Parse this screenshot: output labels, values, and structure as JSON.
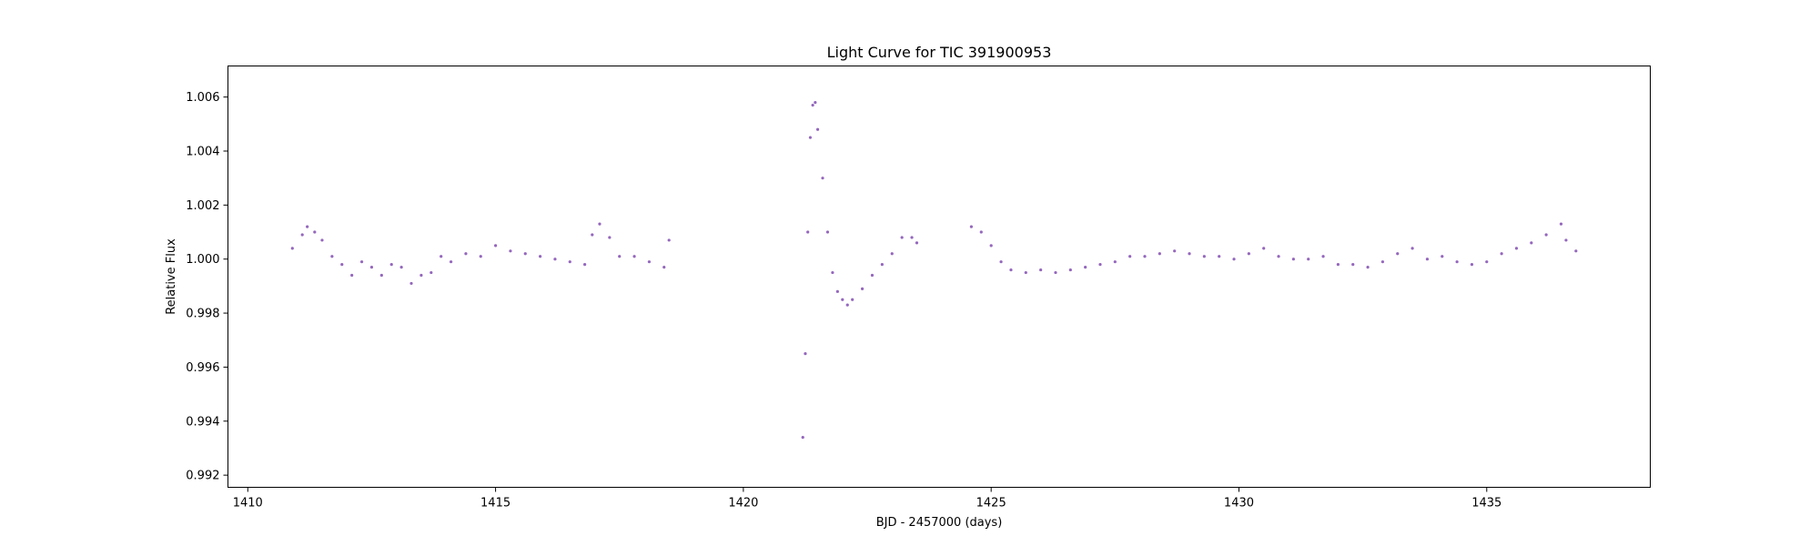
{
  "chart_data": {
    "type": "scatter",
    "title": "Light Curve for TIC 391900953",
    "xlabel": "BJD - 2457000 (days)",
    "ylabel": "Relative Flux",
    "xlim": [
      1409.6,
      1438.3
    ],
    "ylim": [
      0.99155,
      1.00715
    ],
    "xticks": [
      1410,
      1415,
      1420,
      1425,
      1430,
      1435
    ],
    "yticks": [
      0.992,
      0.994,
      0.996,
      0.998,
      1.0,
      1.002,
      1.004,
      1.006
    ],
    "ytick_labels": [
      "0.992",
      "0.994",
      "0.996",
      "0.998",
      "1.000",
      "1.002",
      "1.004",
      "1.006"
    ],
    "grid": false,
    "marker_color": "#9467bd",
    "series": [
      {
        "x": [
          1410.9,
          1411.1,
          1411.2,
          1411.35,
          1411.5,
          1411.7,
          1411.9,
          1412.1,
          1412.3,
          1412.5,
          1412.7,
          1412.9,
          1413.1,
          1413.3,
          1413.5,
          1413.7,
          1413.9,
          1414.1,
          1414.4,
          1414.7,
          1415.0,
          1415.3,
          1415.6,
          1415.9,
          1416.2,
          1416.5,
          1416.8,
          1416.95,
          1417.1,
          1417.3,
          1417.5,
          1417.8,
          1418.1,
          1418.4,
          1418.5,
          1421.2,
          1421.25,
          1421.3,
          1421.35,
          1421.4,
          1421.45,
          1421.5,
          1421.6,
          1421.7,
          1421.8,
          1421.9,
          1422.0,
          1422.1,
          1422.2,
          1422.4,
          1422.6,
          1422.8,
          1423.0,
          1423.2,
          1423.4,
          1423.5,
          1424.6,
          1424.8,
          1425.0,
          1425.2,
          1425.4,
          1425.7,
          1426.0,
          1426.3,
          1426.6,
          1426.9,
          1427.2,
          1427.5,
          1427.8,
          1428.1,
          1428.4,
          1428.7,
          1429.0,
          1429.3,
          1429.6,
          1429.9,
          1430.2,
          1430.5,
          1430.8,
          1431.1,
          1431.4,
          1431.7,
          1432.0,
          1432.3,
          1432.6,
          1432.9,
          1433.2,
          1433.5,
          1433.8,
          1434.1,
          1434.4,
          1434.7,
          1435.0,
          1435.3,
          1435.6,
          1435.9,
          1436.2,
          1436.5,
          1436.6,
          1436.8
        ],
        "y": [
          1.0004,
          1.0009,
          1.0012,
          1.001,
          1.0007,
          1.0001,
          0.9998,
          0.9994,
          0.9999,
          0.9997,
          0.9994,
          0.9998,
          0.9997,
          0.9991,
          0.9994,
          0.9995,
          1.0001,
          0.9999,
          1.0002,
          1.0001,
          1.0005,
          1.0003,
          1.0002,
          1.0001,
          1.0,
          0.9999,
          0.9998,
          1.0009,
          1.0013,
          1.0008,
          1.0001,
          1.0001,
          0.9999,
          0.9997,
          1.0007,
          0.9934,
          0.9965,
          1.001,
          1.0045,
          1.0057,
          1.0058,
          1.0048,
          1.003,
          1.001,
          0.9995,
          0.9988,
          0.9985,
          0.9983,
          0.9985,
          0.9989,
          0.9994,
          0.9998,
          1.0002,
          1.0008,
          1.0008,
          1.0006,
          1.0012,
          1.001,
          1.0005,
          0.9999,
          0.9996,
          0.9995,
          0.9996,
          0.9995,
          0.9996,
          0.9997,
          0.9998,
          0.9999,
          1.0001,
          1.0001,
          1.0002,
          1.0003,
          1.0002,
          1.0001,
          1.0001,
          1.0,
          1.0002,
          1.0004,
          1.0001,
          1.0,
          1.0,
          1.0001,
          0.9998,
          0.9998,
          0.9997,
          0.9999,
          1.0002,
          1.0004,
          1.0,
          1.0001,
          0.9999,
          0.9998,
          0.9999,
          1.0002,
          1.0004,
          1.0006,
          1.0009,
          1.0013,
          1.0007,
          1.0003
        ]
      }
    ]
  }
}
